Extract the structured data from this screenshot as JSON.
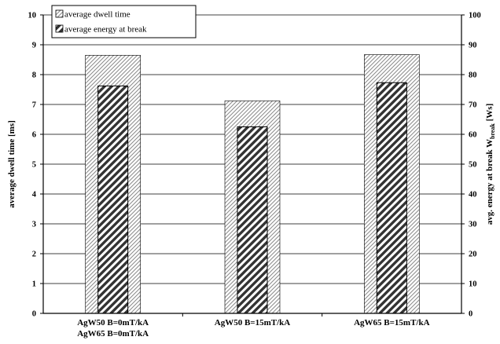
{
  "chart_data": {
    "type": "bar",
    "categories": [
      [
        "AgW50 B=0mT/kA",
        "AgW65 B=0mT/kA"
      ],
      [
        "AgW50 B=15mT/kA"
      ],
      [
        "AgW65 B=15mT/kA"
      ]
    ],
    "series": [
      {
        "name": "average dwell time",
        "axis": "left",
        "values": [
          8.65,
          7.12,
          8.67
        ],
        "color": "#7a7a7a"
      },
      {
        "name": "average energy at break",
        "axis": "right",
        "values": [
          76.2,
          62.5,
          77.3
        ],
        "color": "#2a2a2a"
      }
    ],
    "ylabel": "average dwell time [ms]",
    "y2label": {
      "main": "avg. energy at break W",
      "subscript": "break",
      "unit": " [Ws]"
    },
    "ylim": [
      0,
      10
    ],
    "y2lim": [
      0,
      100
    ],
    "yticks": [
      0,
      1,
      2,
      3,
      4,
      5,
      6,
      7,
      8,
      9,
      10
    ],
    "y2ticks": [
      0,
      10,
      20,
      30,
      40,
      50,
      60,
      70,
      80,
      90,
      100
    ],
    "grid": true,
    "legend_position": "top-left"
  }
}
